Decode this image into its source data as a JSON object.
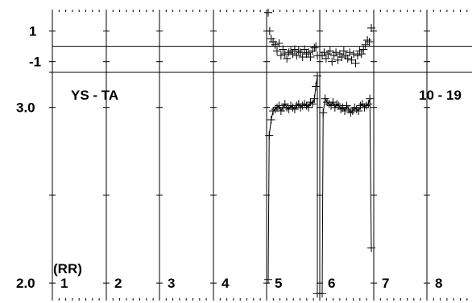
{
  "chart_data": {
    "type": "scatter",
    "top_panel": {
      "ytick_labels": [
        "1",
        "-1"
      ],
      "ticks": [
        1,
        -1
      ],
      "ref_line": 0,
      "ylim": [
        -1.7,
        2.4
      ]
    },
    "main_panel": {
      "label_left": "YS - TA",
      "label_right": "10 - 19",
      "ylabel": "(RR)",
      "ytick_labels": [
        "3.0",
        "2.0"
      ],
      "ticks": [
        3.0,
        2.5,
        2.0
      ],
      "ylim": [
        1.9,
        3.2
      ]
    },
    "column_labels": [
      "1",
      "2",
      "3",
      "4",
      "5",
      "6",
      "7",
      "8"
    ],
    "segments": [
      {
        "column": "5",
        "main": [
          [
            0.0,
            2.02
          ],
          [
            0.02,
            2.84
          ],
          [
            0.06,
            2.93
          ],
          [
            0.1,
            2.98
          ],
          [
            0.14,
            2.99
          ],
          [
            0.18,
            3.0
          ],
          [
            0.22,
            3.01
          ],
          [
            0.26,
            2.98
          ],
          [
            0.3,
            3.0
          ],
          [
            0.34,
            3.02
          ],
          [
            0.38,
            3.0
          ],
          [
            0.42,
            2.99
          ],
          [
            0.46,
            3.01
          ],
          [
            0.5,
            3.0
          ],
          [
            0.54,
            2.99
          ],
          [
            0.58,
            3.01
          ],
          [
            0.62,
            3.02
          ],
          [
            0.66,
            3.0
          ],
          [
            0.7,
            3.01
          ],
          [
            0.74,
            3.02
          ],
          [
            0.78,
            3.01
          ],
          [
            0.82,
            3.0
          ],
          [
            0.86,
            3.03
          ],
          [
            0.9,
            3.02
          ],
          [
            0.94,
            3.05
          ],
          [
            0.97,
            3.12
          ],
          [
            1.0,
            3.18
          ],
          [
            1.0,
            1.94
          ]
        ],
        "top": [
          [
            0.0,
            2.2
          ],
          [
            0.03,
            1.0
          ],
          [
            0.06,
            0.5
          ],
          [
            0.1,
            0.3
          ],
          [
            0.14,
            0.1
          ],
          [
            0.18,
            -0.3
          ],
          [
            0.22,
            0.2
          ],
          [
            0.26,
            -0.6
          ],
          [
            0.3,
            -0.2
          ],
          [
            0.34,
            -0.5
          ],
          [
            0.38,
            -0.8
          ],
          [
            0.42,
            -0.4
          ],
          [
            0.46,
            -0.3
          ],
          [
            0.5,
            -0.5
          ],
          [
            0.54,
            -0.2
          ],
          [
            0.58,
            -0.6
          ],
          [
            0.62,
            -0.3
          ],
          [
            0.66,
            -0.4
          ],
          [
            0.7,
            -0.7
          ],
          [
            0.74,
            -0.2
          ],
          [
            0.78,
            -0.5
          ],
          [
            0.82,
            -0.4
          ],
          [
            0.86,
            -0.7
          ],
          [
            0.9,
            -0.3
          ],
          [
            0.94,
            -0.1
          ],
          [
            0.97,
            0.0
          ],
          [
            1.0,
            -0.6
          ]
        ]
      },
      {
        "column": "6",
        "main": [
          [
            0.0,
            1.94
          ],
          [
            0.02,
            2.97
          ],
          [
            0.06,
            3.05
          ],
          [
            0.1,
            3.03
          ],
          [
            0.14,
            3.02
          ],
          [
            0.18,
            3.01
          ],
          [
            0.22,
            3.03
          ],
          [
            0.26,
            3.0
          ],
          [
            0.3,
            3.02
          ],
          [
            0.34,
            3.01
          ],
          [
            0.38,
            2.99
          ],
          [
            0.42,
            3.0
          ],
          [
            0.46,
            2.98
          ],
          [
            0.5,
            3.01
          ],
          [
            0.54,
            2.99
          ],
          [
            0.58,
            2.97
          ],
          [
            0.62,
            2.98
          ],
          [
            0.66,
            3.0
          ],
          [
            0.7,
            2.99
          ],
          [
            0.74,
            2.98
          ],
          [
            0.78,
            3.01
          ],
          [
            0.82,
            3.02
          ],
          [
            0.86,
            3.0
          ],
          [
            0.9,
            3.01
          ],
          [
            0.94,
            3.02
          ],
          [
            0.97,
            3.05
          ],
          [
            1.0,
            2.2
          ]
        ],
        "top": [
          [
            0.0,
            -0.6
          ],
          [
            0.04,
            -0.4
          ],
          [
            0.08,
            -0.8
          ],
          [
            0.12,
            -0.5
          ],
          [
            0.16,
            -0.3
          ],
          [
            0.2,
            -1.0
          ],
          [
            0.24,
            -0.6
          ],
          [
            0.28,
            -0.4
          ],
          [
            0.32,
            -0.9
          ],
          [
            0.36,
            -0.5
          ],
          [
            0.4,
            -0.7
          ],
          [
            0.44,
            -0.3
          ],
          [
            0.48,
            -0.6
          ],
          [
            0.52,
            -0.8
          ],
          [
            0.56,
            -0.4
          ],
          [
            0.6,
            -0.9
          ],
          [
            0.64,
            -0.5
          ],
          [
            0.68,
            -1.1
          ],
          [
            0.72,
            -0.6
          ],
          [
            0.76,
            -0.3
          ],
          [
            0.8,
            -0.5
          ],
          [
            0.84,
            -0.2
          ],
          [
            0.88,
            0.1
          ],
          [
            0.92,
            0.4
          ],
          [
            0.96,
            0.3
          ],
          [
            1.0,
            1.2
          ]
        ]
      }
    ]
  }
}
